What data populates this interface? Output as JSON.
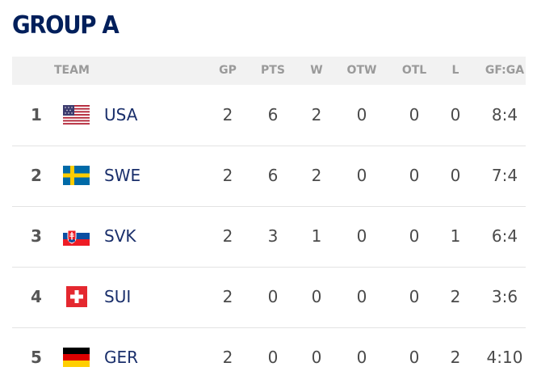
{
  "title": "GROUP A",
  "headers": {
    "team": "TEAM",
    "gp": "GP",
    "pts": "PTS",
    "w": "W",
    "otw": "OTW",
    "otl": "OTL",
    "l": "L",
    "gfga": "GF:GA"
  },
  "rows": [
    {
      "rank": "1",
      "flag": "usa-flag-icon",
      "team": "USA",
      "gp": "2",
      "pts": "6",
      "w": "2",
      "otw": "0",
      "otl": "0",
      "l": "0",
      "gfga": "8:4"
    },
    {
      "rank": "2",
      "flag": "sweden-flag-icon",
      "team": "SWE",
      "gp": "2",
      "pts": "6",
      "w": "2",
      "otw": "0",
      "otl": "0",
      "l": "0",
      "gfga": "7:4"
    },
    {
      "rank": "3",
      "flag": "slovakia-flag-icon",
      "team": "SVK",
      "gp": "2",
      "pts": "3",
      "w": "1",
      "otw": "0",
      "otl": "0",
      "l": "1",
      "gfga": "6:4"
    },
    {
      "rank": "4",
      "flag": "switzerland-flag-icon",
      "team": "SUI",
      "gp": "2",
      "pts": "0",
      "w": "0",
      "otw": "0",
      "otl": "0",
      "l": "2",
      "gfga": "3:6"
    },
    {
      "rank": "5",
      "flag": "germany-flag-icon",
      "team": "GER",
      "gp": "2",
      "pts": "0",
      "w": "0",
      "otw": "0",
      "otl": "0",
      "l": "2",
      "gfga": "4:10"
    }
  ],
  "colors": {
    "title": "#001f5b",
    "team_text": "#1a2f6b",
    "header_bg": "#f2f2f2",
    "header_text": "#9a9a9a"
  }
}
